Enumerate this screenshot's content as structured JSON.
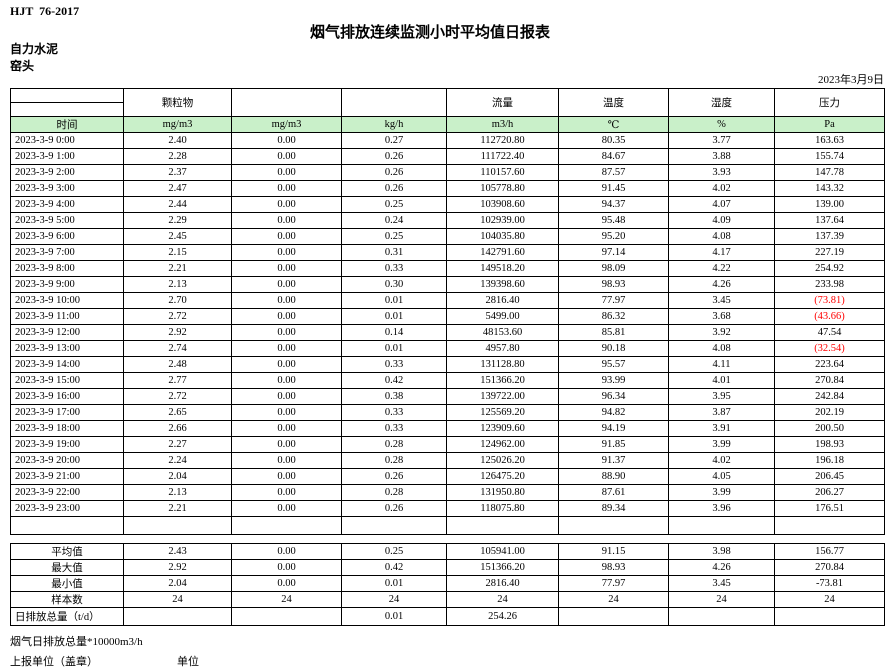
{
  "page": {
    "standard": "HJT  76-2017",
    "title": "烟气排放连续监测小时平均值日报表",
    "company": "自力水泥",
    "station": "窑头",
    "date": "2023年3月9日"
  },
  "table": {
    "group_headers": [
      "",
      "颗粒物",
      "",
      "",
      "流量",
      "温度",
      "湿度",
      "压力"
    ],
    "unit_row": [
      "时间",
      "mg/m3",
      "mg/m3",
      "kg/h",
      "m3/h",
      "℃",
      "%",
      "Pa"
    ],
    "rows": [
      [
        "2023-3-9 0:00",
        "2.40",
        "0.00",
        "0.27",
        "112720.80",
        "80.35",
        "3.77",
        "163.63"
      ],
      [
        "2023-3-9 1:00",
        "2.28",
        "0.00",
        "0.26",
        "111722.40",
        "84.67",
        "3.88",
        "155.74"
      ],
      [
        "2023-3-9 2:00",
        "2.37",
        "0.00",
        "0.26",
        "110157.60",
        "87.57",
        "3.93",
        "147.78"
      ],
      [
        "2023-3-9 3:00",
        "2.47",
        "0.00",
        "0.26",
        "105778.80",
        "91.45",
        "4.02",
        "143.32"
      ],
      [
        "2023-3-9 4:00",
        "2.44",
        "0.00",
        "0.25",
        "103908.60",
        "94.37",
        "4.07",
        "139.00"
      ],
      [
        "2023-3-9 5:00",
        "2.29",
        "0.00",
        "0.24",
        "102939.00",
        "95.48",
        "4.09",
        "137.64"
      ],
      [
        "2023-3-9 6:00",
        "2.45",
        "0.00",
        "0.25",
        "104035.80",
        "95.20",
        "4.08",
        "137.39"
      ],
      [
        "2023-3-9 7:00",
        "2.15",
        "0.00",
        "0.31",
        "142791.60",
        "97.14",
        "4.17",
        "227.19"
      ],
      [
        "2023-3-9 8:00",
        "2.21",
        "0.00",
        "0.33",
        "149518.20",
        "98.09",
        "4.22",
        "254.92"
      ],
      [
        "2023-3-9 9:00",
        "2.13",
        "0.00",
        "0.30",
        "139398.60",
        "98.93",
        "4.26",
        "233.98"
      ],
      [
        "2023-3-9 10:00",
        "2.70",
        "0.00",
        "0.01",
        "2816.40",
        "77.97",
        "3.45",
        "(73.81)"
      ],
      [
        "2023-3-9 11:00",
        "2.72",
        "0.00",
        "0.01",
        "5499.00",
        "86.32",
        "3.68",
        "(43.66)"
      ],
      [
        "2023-3-9 12:00",
        "2.92",
        "0.00",
        "0.14",
        "48153.60",
        "85.81",
        "3.92",
        "47.54"
      ],
      [
        "2023-3-9 13:00",
        "2.74",
        "0.00",
        "0.01",
        "4957.80",
        "90.18",
        "4.08",
        "(32.54)"
      ],
      [
        "2023-3-9 14:00",
        "2.48",
        "0.00",
        "0.33",
        "131128.80",
        "95.57",
        "4.11",
        "223.64"
      ],
      [
        "2023-3-9 15:00",
        "2.77",
        "0.00",
        "0.42",
        "151366.20",
        "93.99",
        "4.01",
        "270.84"
      ],
      [
        "2023-3-9 16:00",
        "2.72",
        "0.00",
        "0.38",
        "139722.00",
        "96.34",
        "3.95",
        "242.84"
      ],
      [
        "2023-3-9 17:00",
        "2.65",
        "0.00",
        "0.33",
        "125569.20",
        "94.82",
        "3.87",
        "202.19"
      ],
      [
        "2023-3-9 18:00",
        "2.66",
        "0.00",
        "0.33",
        "123909.60",
        "94.19",
        "3.91",
        "200.50"
      ],
      [
        "2023-3-9 19:00",
        "2.27",
        "0.00",
        "0.28",
        "124962.00",
        "91.85",
        "3.99",
        "198.93"
      ],
      [
        "2023-3-9 20:00",
        "2.24",
        "0.00",
        "0.28",
        "125026.20",
        "91.37",
        "4.02",
        "196.18"
      ],
      [
        "2023-3-9 21:00",
        "2.04",
        "0.00",
        "0.26",
        "126475.20",
        "88.90",
        "4.05",
        "206.45"
      ],
      [
        "2023-3-9 22:00",
        "2.13",
        "0.00",
        "0.28",
        "131950.80",
        "87.61",
        "3.99",
        "206.27"
      ],
      [
        "2023-3-9 23:00",
        "2.21",
        "0.00",
        "0.26",
        "118075.80",
        "89.34",
        "3.96",
        "176.51"
      ]
    ],
    "summary_rows": [
      [
        "平均值",
        "2.43",
        "0.00",
        "0.25",
        "105941.00",
        "91.15",
        "3.98",
        "156.77"
      ],
      [
        "最大值",
        "2.92",
        "0.00",
        "0.42",
        "151366.20",
        "98.93",
        "4.26",
        "270.84"
      ],
      [
        "最小值",
        "2.04",
        "0.00",
        "0.01",
        "2816.40",
        "77.97",
        "3.45",
        "-73.81"
      ],
      [
        "样本数",
        "24",
        "24",
        "24",
        "24",
        "24",
        "24",
        "24"
      ],
      [
        "日排放总量（t/d）",
        "",
        "",
        "0.01",
        "254.26",
        "",
        "",
        ""
      ]
    ]
  },
  "footer": {
    "note": "烟气日排放总量*10000m3/h",
    "report_unit_label": "上报单位（盖章）",
    "unit_label": "单位"
  },
  "colors": {
    "unit_row_bg": "#c9f0c9",
    "negative": "#ff0000"
  }
}
